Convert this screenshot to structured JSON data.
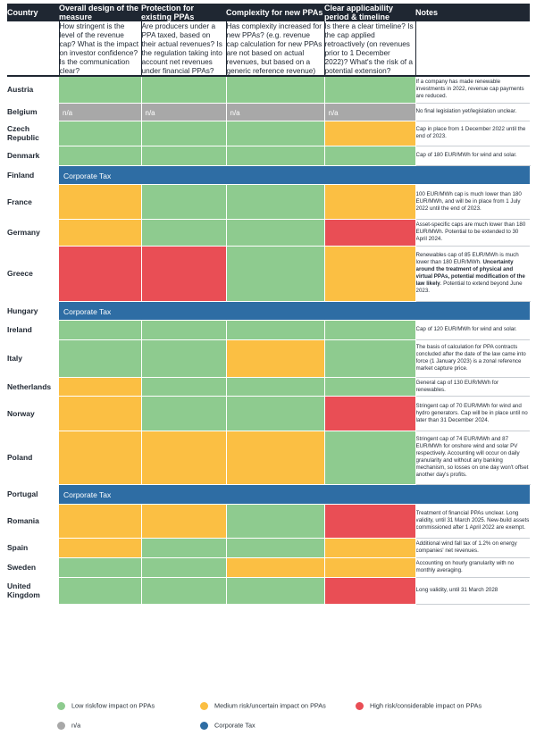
{
  "colors": {
    "low": "#8ecb8f",
    "medium": "#fbbf43",
    "high": "#e94e55",
    "na": "#a8a8a8",
    "corp": "#2e6da4"
  },
  "headers": [
    "Country",
    "Overall design of the measure",
    "Protection for existing PPAs",
    "Complexity for new PPAs",
    "Clear applicability period & timeline",
    "Notes"
  ],
  "questions": [
    "How stringent is the level of the revenue cap? What is the impact on investor confidence? Is the communication clear?",
    "Are producers under a PPA taxed, based on their actual revenues? Is the regulation taking into account net revenues under financial PPAs?",
    "Has complexity increased for new PPAs? (e.g. revenue cap calculation for new PPAs are not based on actual revenues, but based on a generic reference revenue)",
    "Is there a clear timeline? Is the cap applied retroactively (on revenues prior to 1 December 2022)? What's the risk of a potential extension?"
  ],
  "rows": [
    {
      "country": "Austria",
      "ratings": [
        "low",
        "low",
        "low",
        "low"
      ],
      "note": "If a company has made renewable investments in 2022, revenue cap payments are reduced."
    },
    {
      "country": "Belgium",
      "ratings": [
        "na",
        "na",
        "na",
        "na"
      ],
      "cell_text": [
        "n/a",
        "n/a",
        "n/a",
        "n/a"
      ],
      "note": "No final legislation yet/legislation unclear."
    },
    {
      "country": "Czech Republic",
      "ratings": [
        "low",
        "low",
        "low",
        "medium"
      ],
      "note": "Cap in place from 1 December 2022 until the end of 2023."
    },
    {
      "country": "Denmark",
      "ratings": [
        "low",
        "low",
        "low",
        "low"
      ],
      "note": "Cap of 180 EUR/MWh for wind and solar."
    },
    {
      "country": "Finland",
      "ratings": [
        "corp"
      ],
      "corp_text": "Corporate Tax",
      "note": ""
    },
    {
      "country": "France",
      "ratings": [
        "medium",
        "low",
        "low",
        "medium"
      ],
      "note": "100 EUR/MWh cap is much lower than 180 EUR/MWh, and will be in place from 1 July 2022 until the end of 2023."
    },
    {
      "country": "Germany",
      "ratings": [
        "medium",
        "low",
        "low",
        "high"
      ],
      "note": "Asset-specific caps are much lower than 180 EUR/MWh. Potential to be extended to 30 April 2024."
    },
    {
      "country": "Greece",
      "ratings": [
        "high",
        "high",
        "low",
        "medium"
      ],
      "note_parts": [
        {
          "t": "Renewables cap of 85 EUR/MWh is much lower than 180 EUR/MWh. ",
          "b": false
        },
        {
          "t": "Uncertainty around the treatment of physical and virtual PPAs, potential modification of the law likely",
          "b": true
        },
        {
          "t": ". Potential to extend beyond June 2023.",
          "b": false
        }
      ]
    },
    {
      "country": "Hungary",
      "ratings": [
        "corp"
      ],
      "corp_text": "Corporate Tax",
      "note": ""
    },
    {
      "country": "Ireland",
      "ratings": [
        "low",
        "low",
        "low",
        "low"
      ],
      "note": "Cap of 120 EUR/MWh for wind and solar."
    },
    {
      "country": "Italy",
      "ratings": [
        "low",
        "low",
        "medium",
        "low"
      ],
      "note": "The basis of calculation for PPA contracts concluded after the date of the law came into force (1 January 2023) is a zonal reference market capture price."
    },
    {
      "country": "Netherlands",
      "ratings": [
        "medium",
        "low",
        "low",
        "low"
      ],
      "note": "General cap of 130 EUR/MWh for renewables."
    },
    {
      "country": "Norway",
      "ratings": [
        "medium",
        "low",
        "low",
        "high"
      ],
      "note": "Stringent cap of 70 EUR/MWh for wind and hydro generators. Cap will be in place until no later than 31 December 2024."
    },
    {
      "country": "Poland",
      "ratings": [
        "medium",
        "medium",
        "medium",
        "low"
      ],
      "note": "Stringent cap of 74 EUR/MWh and 87 EUR/MWh for onshore wind and solar PV respectively. Accounting will occur on daily granularity and without any banking mechanism, so losses on one day won't offset another day's profits."
    },
    {
      "country": "Portugal",
      "ratings": [
        "corp"
      ],
      "corp_text": "Corporate Tax",
      "note": ""
    },
    {
      "country": "Romania",
      "ratings": [
        "medium",
        "medium",
        "low",
        "high"
      ],
      "note": "Treatment of financial PPAs unclear. Long validity, until 31 March 2025. New-build assets commissioned after 1 April 2022 are exempt."
    },
    {
      "country": "Spain",
      "ratings": [
        "medium",
        "low",
        "low",
        "medium"
      ],
      "note": "Additional wind fall tax of 1.2% on energy companies' net revenues."
    },
    {
      "country": "Sweden",
      "ratings": [
        "low",
        "low",
        "medium",
        "medium"
      ],
      "note": "Accounting on hourly granularity with no monthly averaging."
    },
    {
      "country": "United Kingdom",
      "ratings": [
        "low",
        "low",
        "low",
        "high"
      ],
      "note": "Long validity, until 31 March 2028"
    }
  ],
  "legend": [
    {
      "key": "low",
      "label": "Low risk/low impact on PPAs"
    },
    {
      "key": "medium",
      "label": "Medium risk/uncertain impact on PPAs"
    },
    {
      "key": "high",
      "label": "High risk/considerable impact on PPAs"
    },
    {
      "key": "na",
      "label": "n/a"
    },
    {
      "key": "corp",
      "label": "Corporate Tax"
    }
  ]
}
